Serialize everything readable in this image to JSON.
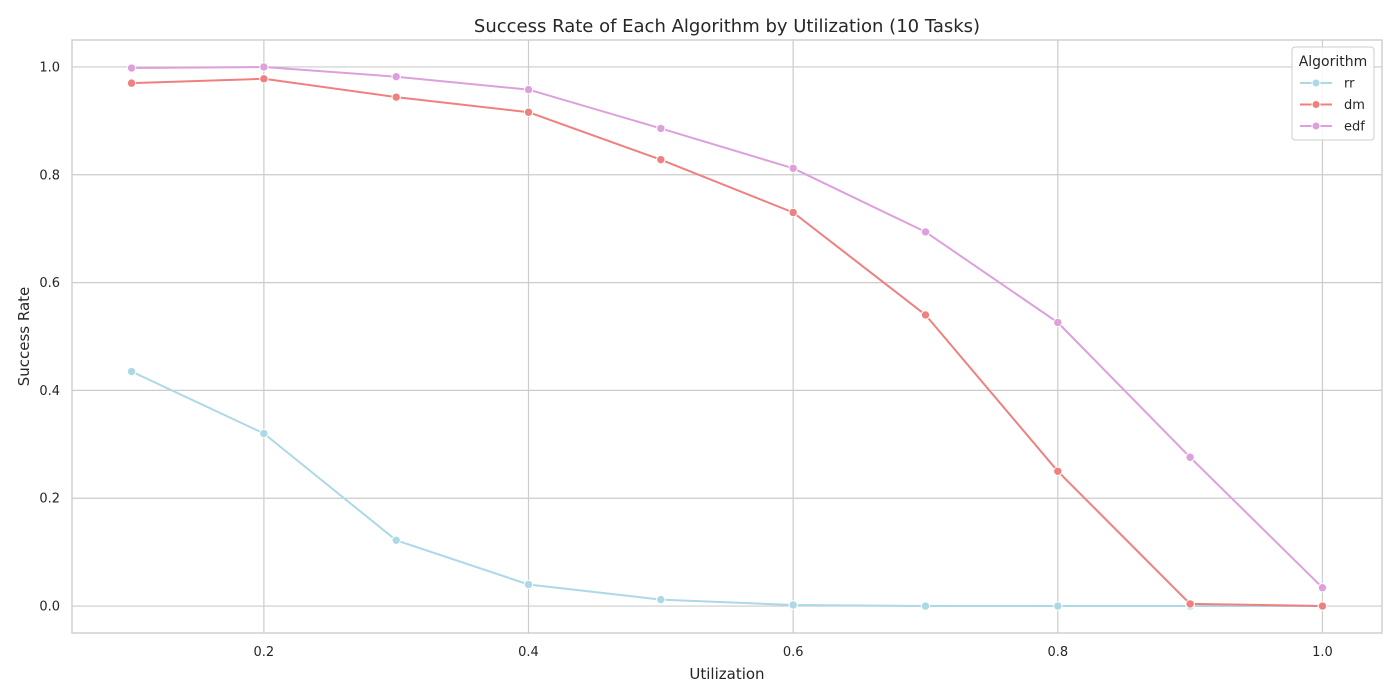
{
  "chart_data": {
    "type": "line",
    "title": "Success Rate of Each Algorithm by Utilization (10 Tasks)",
    "xlabel": "Utilization",
    "ylabel": "Success Rate",
    "x": [
      0.1,
      0.2,
      0.3,
      0.4,
      0.5,
      0.6,
      0.7,
      0.8,
      0.9,
      1.0
    ],
    "xlim": [
      0.055,
      1.045
    ],
    "ylim": [
      -0.05,
      1.05
    ],
    "xticks": [
      0.2,
      0.4,
      0.6,
      0.8,
      1.0
    ],
    "xtick_labels": [
      "0.2",
      "0.4",
      "0.6",
      "0.8",
      "1.0"
    ],
    "yticks": [
      0.0,
      0.2,
      0.4,
      0.6,
      0.8,
      1.0
    ],
    "ytick_labels": [
      "0.0",
      "0.2",
      "0.4",
      "0.6",
      "0.8",
      "1.0"
    ],
    "grid": true,
    "legend": {
      "title": "Algorithm",
      "position": "top-right"
    },
    "series": [
      {
        "name": "rr",
        "color": "#add8e6",
        "values": [
          0.435,
          0.32,
          0.122,
          0.04,
          0.012,
          0.002,
          0.0,
          0.0,
          0.0,
          0.0
        ]
      },
      {
        "name": "dm",
        "color": "#f08080",
        "values": [
          0.97,
          0.978,
          0.944,
          0.916,
          0.828,
          0.73,
          0.54,
          0.25,
          0.004,
          0.0
        ]
      },
      {
        "name": "edf",
        "color": "#dda0dd",
        "values": [
          0.998,
          1.0,
          0.982,
          0.958,
          0.886,
          0.812,
          0.694,
          0.526,
          0.276,
          0.034
        ]
      }
    ]
  }
}
